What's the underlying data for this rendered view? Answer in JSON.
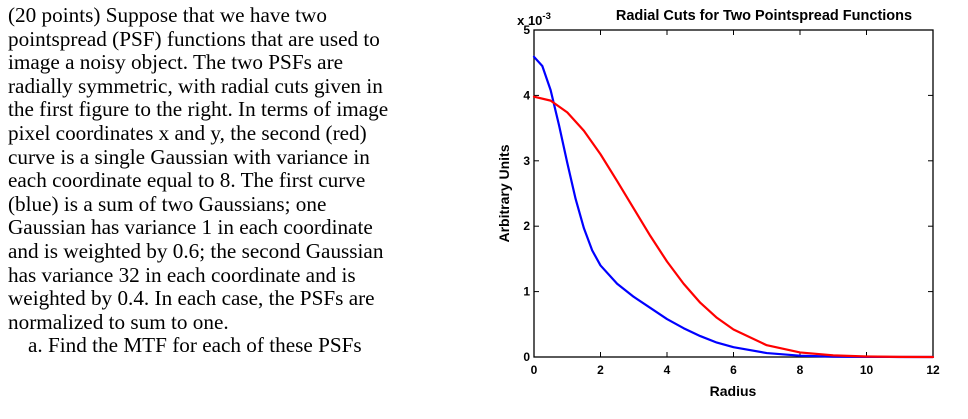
{
  "problem": {
    "lines": [
      "(20 points)  Suppose that we  have two",
      "pointspread (PSF) functions that are used to",
      "image a noisy object.  The two PSFs are",
      "radially symmetric, with radial cuts given in",
      "the first figure to the right.  In terms of image",
      "pixel coordinates x and y, the second (red)",
      "curve is a single Gaussian with variance in",
      "each coordinate equal to 8.  The first curve",
      "(blue) is a sum of two Gaussians; one",
      "Gaussian has variance 1 in each coordinate",
      "and is weighted by 0.6; the second Gaussian",
      "has variance 32 in each coordinate and is",
      "weighted by 0.4.  In each case, the PSFs are",
      "normalized to sum to one."
    ],
    "subquestion": "a.   Find the MTF for each of these PSFs"
  },
  "chart_data": {
    "type": "line",
    "title": "Radial Cuts for Two Pointspread Functions",
    "xlabel": "Radius",
    "ylabel": "Arbitrary Units",
    "exponent_label": "x 10",
    "exponent_power": "-3",
    "xlim": [
      0,
      12
    ],
    "ylim": [
      0,
      5
    ],
    "xticks": [
      "0",
      "2",
      "4",
      "6",
      "8",
      "10",
      "12"
    ],
    "yticks": [
      "0",
      "1",
      "2",
      "3",
      "4",
      "5"
    ],
    "series": [
      {
        "name": "blue",
        "color": "#0000ff",
        "x": [
          0,
          0.25,
          0.5,
          0.75,
          1,
          1.25,
          1.5,
          1.75,
          2,
          2.5,
          3,
          3.5,
          4,
          4.5,
          5,
          5.5,
          6,
          7,
          8,
          9,
          10,
          11,
          12
        ],
        "values": [
          4.59,
          4.45,
          4.08,
          3.55,
          2.97,
          2.42,
          1.97,
          1.63,
          1.4,
          1.12,
          0.92,
          0.75,
          0.58,
          0.44,
          0.32,
          0.22,
          0.15,
          0.06,
          0.02,
          0.006,
          0.002,
          0.0004,
          0.0001
        ]
      },
      {
        "name": "red",
        "color": "#ff0000",
        "x": [
          0,
          0.5,
          1,
          1.5,
          2,
          2.5,
          3,
          3.5,
          4,
          4.5,
          5,
          5.5,
          6,
          7,
          8,
          9,
          10,
          11,
          12
        ],
        "values": [
          3.98,
          3.92,
          3.74,
          3.46,
          3.1,
          2.69,
          2.27,
          1.85,
          1.46,
          1.12,
          0.83,
          0.6,
          0.42,
          0.18,
          0.07,
          0.025,
          0.008,
          0.002,
          0.0005
        ]
      }
    ]
  }
}
